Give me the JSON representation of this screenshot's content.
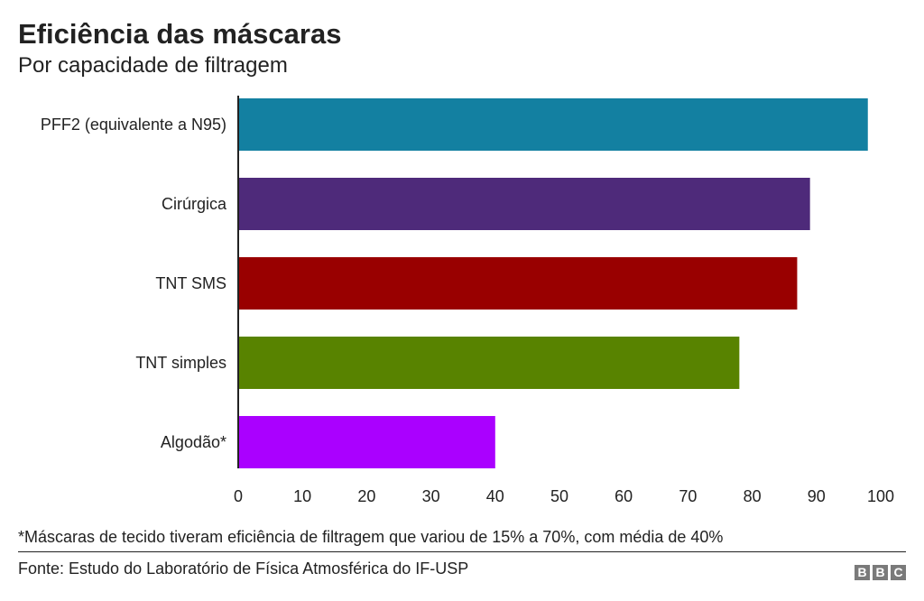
{
  "header": {
    "title": "Eficiência das máscaras",
    "subtitle": "Por capacidade de filtragem"
  },
  "chart_data": {
    "type": "bar",
    "orientation": "horizontal",
    "categories": [
      "PFF2 (equivalente a N95)",
      "Cirúrgica",
      "TNT SMS",
      "TNT simples",
      "Algodão*"
    ],
    "values": [
      98,
      89,
      87,
      78,
      40
    ],
    "colors": [
      "#1380a1",
      "#4e2a7a",
      "#990000",
      "#588300",
      "#aa00ff"
    ],
    "xlim": [
      0,
      100
    ],
    "xticks": [
      0,
      10,
      20,
      30,
      40,
      50,
      60,
      70,
      80,
      90,
      100
    ],
    "grid": false,
    "title": "Eficiência das máscaras",
    "subtitle": "Por capacidade de filtragem"
  },
  "footer": {
    "note": "*Máscaras de tecido tiveram eficiência de filtragem que variou de 15% a 70%, com média de 40%",
    "source": "Fonte: Estudo do Laboratório de Física Atmosférica do IF-USP",
    "logo_letters": [
      "B",
      "B",
      "C"
    ]
  }
}
